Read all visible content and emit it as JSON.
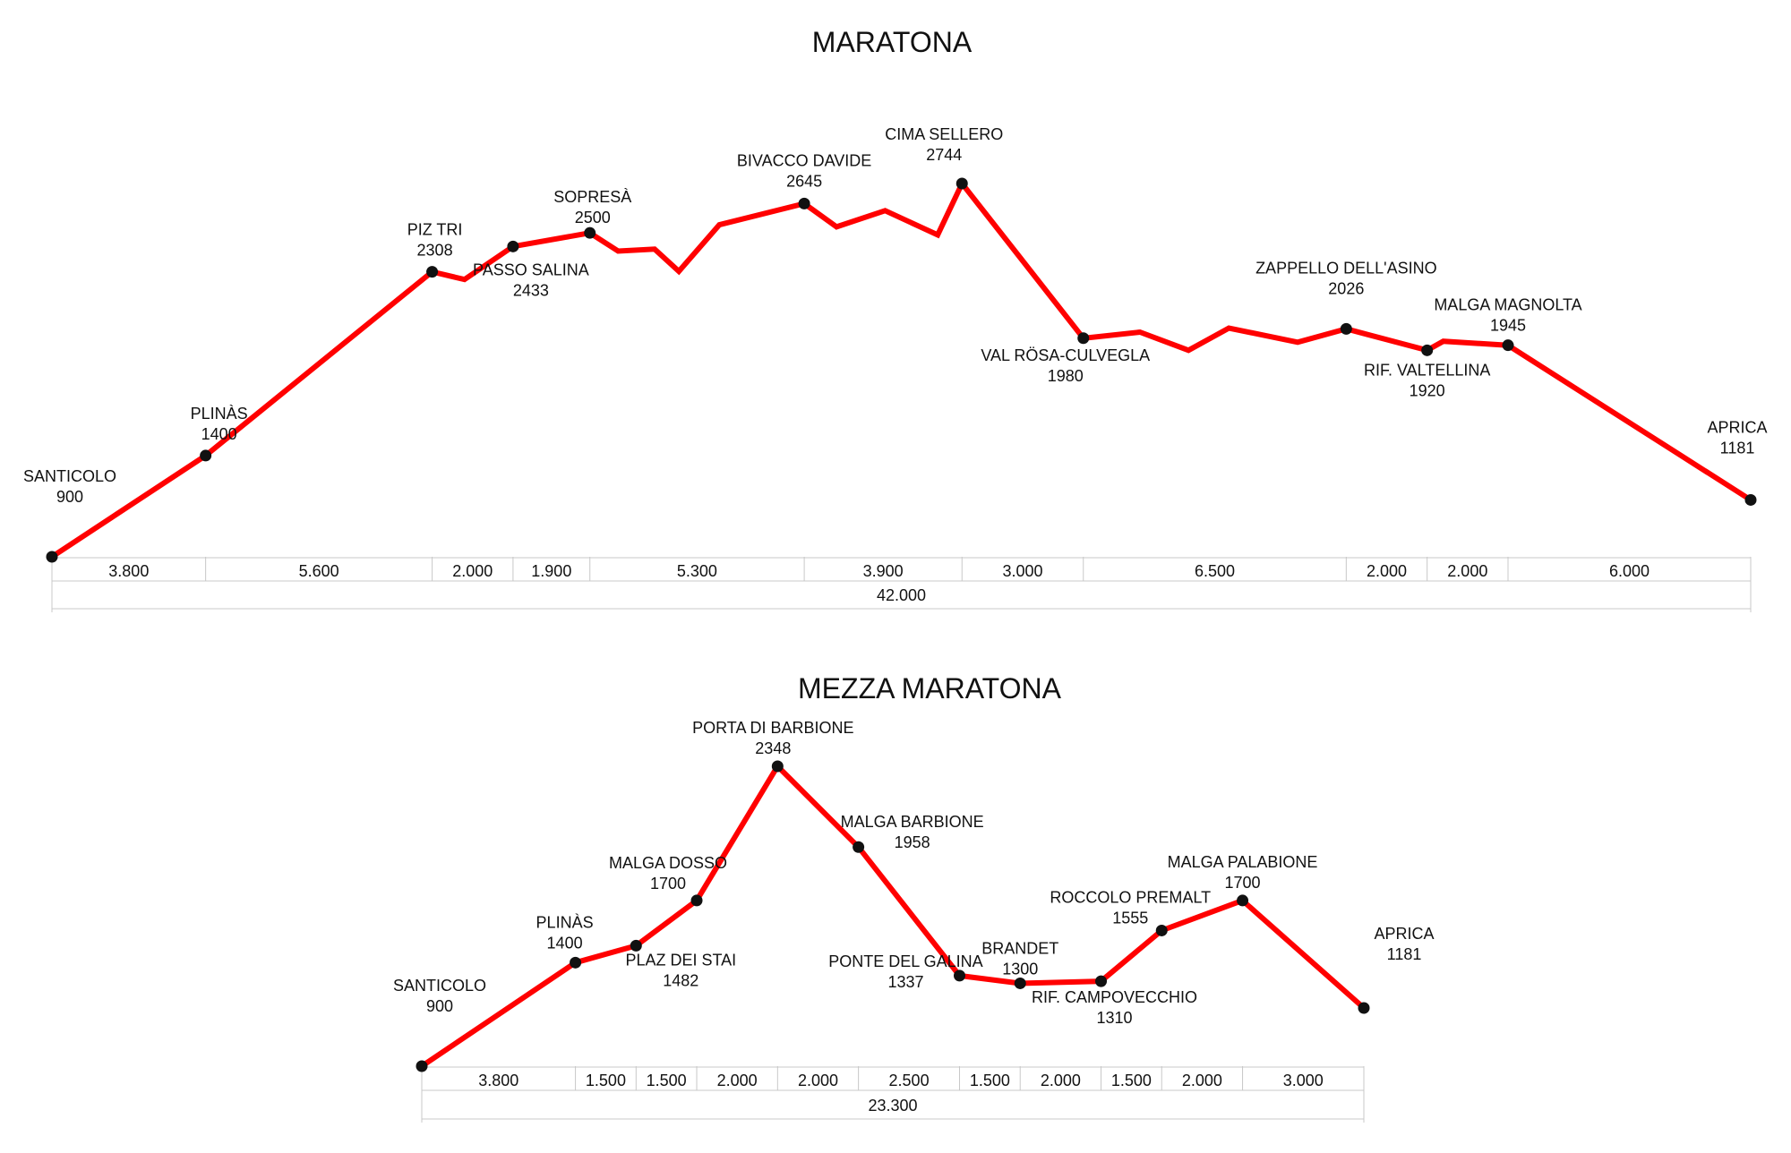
{
  "chart_data": [
    {
      "type": "line",
      "title": "MARATONA",
      "color": "#ff0000",
      "total_label": "42.000",
      "segment_labels": [
        "3.800",
        "5.600",
        "2.000",
        "1.900",
        "5.300",
        "3.900",
        "3.000",
        "6.500",
        "2.000",
        "2.000",
        "6.000"
      ],
      "points": [
        {
          "km": 0.0,
          "elev": 900,
          "marker": true,
          "name": "SANTICOLO",
          "elev_label": "900"
        },
        {
          "km": 3.8,
          "elev": 1400,
          "marker": true,
          "name": "PLINÀS",
          "elev_label": "1400"
        },
        {
          "km": 9.4,
          "elev": 2308,
          "marker": true,
          "name": "PIZ TRI",
          "elev_label": "2308"
        },
        {
          "km": 10.2,
          "elev": 2270,
          "marker": false
        },
        {
          "km": 11.4,
          "elev": 2433,
          "marker": true,
          "name": "PASSO SALINA",
          "elev_label": "2433"
        },
        {
          "km": 13.3,
          "elev": 2500,
          "marker": true,
          "name": "SOPRESÀ",
          "elev_label": "2500"
        },
        {
          "km": 14.0,
          "elev": 2410,
          "marker": false
        },
        {
          "km": 14.9,
          "elev": 2420,
          "marker": false
        },
        {
          "km": 15.5,
          "elev": 2310,
          "marker": false
        },
        {
          "km": 16.5,
          "elev": 2540,
          "marker": false
        },
        {
          "km": 18.6,
          "elev": 2645,
          "marker": true,
          "name": "BIVACCO DAVIDE",
          "elev_label": "2645"
        },
        {
          "km": 19.4,
          "elev": 2530,
          "marker": false
        },
        {
          "km": 20.6,
          "elev": 2610,
          "marker": false
        },
        {
          "km": 21.9,
          "elev": 2490,
          "marker": false
        },
        {
          "km": 22.5,
          "elev": 2744,
          "marker": true,
          "name": "CIMA SELLERO",
          "elev_label": "2744"
        },
        {
          "km": 25.5,
          "elev": 1980,
          "marker": true,
          "name": "VAL RÖSA-CULVEGLA",
          "elev_label": "1980"
        },
        {
          "km": 26.9,
          "elev": 2010,
          "marker": false
        },
        {
          "km": 28.1,
          "elev": 1920,
          "marker": false
        },
        {
          "km": 29.1,
          "elev": 2030,
          "marker": false
        },
        {
          "km": 30.8,
          "elev": 1960,
          "marker": false
        },
        {
          "km": 32.0,
          "elev": 2026,
          "marker": true,
          "name": "ZAPPELLO DELL'ASINO",
          "elev_label": "2026"
        },
        {
          "km": 34.0,
          "elev": 1920,
          "marker": true,
          "name": "RIF. VALTELLINA",
          "elev_label": "1920"
        },
        {
          "km": 34.4,
          "elev": 1965,
          "marker": false
        },
        {
          "km": 36.0,
          "elev": 1945,
          "marker": true,
          "name": "MALGA MAGNOLTA",
          "elev_label": "1945"
        },
        {
          "km": 42.0,
          "elev": 1181,
          "marker": true,
          "name": "APRICA",
          "elev_label": "1181"
        }
      ]
    },
    {
      "type": "line",
      "title": "MEZZA MARATONA",
      "color": "#ff0000",
      "total_label": "23.300",
      "segment_labels": [
        "3.800",
        "1.500",
        "1.500",
        "2.000",
        "2.000",
        "2.500",
        "1.500",
        "2.000",
        "1.500",
        "2.000",
        "3.000"
      ],
      "points": [
        {
          "km": 0.0,
          "elev": 900,
          "marker": true,
          "name": "SANTICOLO",
          "elev_label": "900"
        },
        {
          "km": 3.8,
          "elev": 1400,
          "marker": true,
          "name": "PLINÀS",
          "elev_label": "1400"
        },
        {
          "km": 5.3,
          "elev": 1482,
          "marker": true,
          "name": "PLAZ DEI STAI",
          "elev_label": "1482"
        },
        {
          "km": 6.8,
          "elev": 1700,
          "marker": true,
          "name": "MALGA DOSSO",
          "elev_label": "1700"
        },
        {
          "km": 8.8,
          "elev": 2348,
          "marker": true,
          "name": "PORTA DI BARBIONE",
          "elev_label": "2348"
        },
        {
          "km": 10.8,
          "elev": 1958,
          "marker": true,
          "name": "MALGA BARBIONE",
          "elev_label": "1958"
        },
        {
          "km": 13.3,
          "elev": 1337,
          "marker": true,
          "name": "PONTE DEL GALINA",
          "elev_label": "1337"
        },
        {
          "km": 14.8,
          "elev": 1300,
          "marker": true,
          "name": "BRANDET",
          "elev_label": "1300"
        },
        {
          "km": 16.8,
          "elev": 1310,
          "marker": true,
          "name": "RIF. CAMPOVECCHIO",
          "elev_label": "1310"
        },
        {
          "km": 18.3,
          "elev": 1555,
          "marker": true,
          "name": "ROCCOLO PREMALT",
          "elev_label": "1555"
        },
        {
          "km": 20.3,
          "elev": 1700,
          "marker": true,
          "name": "MALGA PALABIONE",
          "elev_label": "1700"
        },
        {
          "km": 23.3,
          "elev": 1181,
          "marker": true,
          "name": "APRICA",
          "elev_label": "1181"
        }
      ]
    }
  ]
}
